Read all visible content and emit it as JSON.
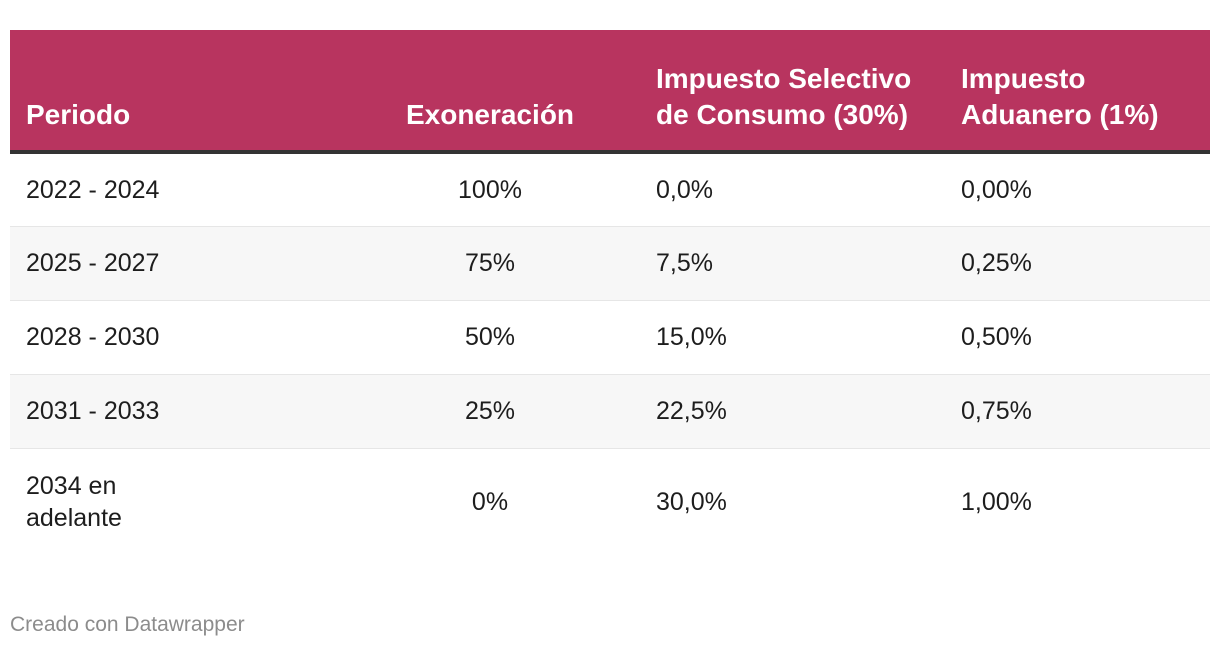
{
  "chart_data": {
    "type": "table",
    "columns": [
      "Periodo",
      "Exoneración",
      "Impuesto Selectivo de Consumo (30%)",
      "Impuesto Aduanero (1%)"
    ],
    "rows": [
      [
        "2022 - 2024",
        "100%",
        "0,0%",
        "0,00%"
      ],
      [
        "2025 - 2027",
        "75%",
        "7,5%",
        "0,25%"
      ],
      [
        "2028 - 2030",
        "50%",
        "15,0%",
        "0,50%"
      ],
      [
        "2031 - 2033",
        "25%",
        "22,5%",
        "0,75%"
      ],
      [
        "2034 en adelante",
        "0%",
        "30,0%",
        "1,00%"
      ]
    ],
    "header_color": "#b8345f"
  },
  "footer": {
    "credit": "Creado con Datawrapper"
  }
}
